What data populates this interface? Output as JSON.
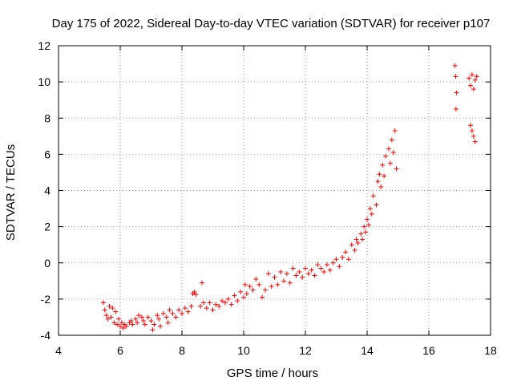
{
  "chart_data": {
    "type": "scatter",
    "title": "Day 175 of 2022, Sidereal Day-to-day VTEC variation (SDTVAR) for receiver p107",
    "xlabel": "GPS time / hours",
    "ylabel": "SDTVAR / TECUs",
    "xlim": [
      4,
      18
    ],
    "ylim": [
      -4,
      12
    ],
    "xticks": [
      "4",
      "6",
      "8",
      "10",
      "12",
      "14",
      "16",
      "18"
    ],
    "yticks": [
      "-4",
      "-2",
      "0",
      "2",
      "4",
      "6",
      "8",
      "10",
      "12"
    ],
    "grid": true,
    "marker": "+",
    "color": "#ff0000",
    "series": [
      {
        "name": "",
        "points": [
          [
            5.45,
            -2.2
          ],
          [
            5.5,
            -2.6
          ],
          [
            5.55,
            -2.9
          ],
          [
            5.6,
            -3.1
          ],
          [
            5.65,
            -2.4
          ],
          [
            5.7,
            -3.0
          ],
          [
            5.75,
            -2.5
          ],
          [
            5.8,
            -3.3
          ],
          [
            5.85,
            -2.7
          ],
          [
            5.9,
            -3.4
          ],
          [
            5.95,
            -3.1
          ],
          [
            6.0,
            -3.5
          ],
          [
            6.05,
            -3.3
          ],
          [
            6.1,
            -3.6
          ],
          [
            6.15,
            -3.4
          ],
          [
            6.2,
            -3.5
          ],
          [
            6.3,
            -3.3
          ],
          [
            6.35,
            -3.2
          ],
          [
            6.4,
            -3.4
          ],
          [
            6.5,
            -3.1
          ],
          [
            6.55,
            -3.3
          ],
          [
            6.6,
            -2.9
          ],
          [
            6.7,
            -3.0
          ],
          [
            6.75,
            -3.2
          ],
          [
            6.8,
            -3.4
          ],
          [
            6.9,
            -3.0
          ],
          [
            7.0,
            -3.2
          ],
          [
            7.05,
            -3.7
          ],
          [
            7.1,
            -3.4
          ],
          [
            7.2,
            -2.9
          ],
          [
            7.25,
            -3.1
          ],
          [
            7.3,
            -3.5
          ],
          [
            7.4,
            -2.8
          ],
          [
            7.5,
            -3.0
          ],
          [
            7.55,
            -3.3
          ],
          [
            7.6,
            -2.6
          ],
          [
            7.7,
            -2.8
          ],
          [
            7.8,
            -3.0
          ],
          [
            7.9,
            -2.6
          ],
          [
            8.0,
            -2.8
          ],
          [
            8.1,
            -2.5
          ],
          [
            8.2,
            -2.7
          ],
          [
            8.3,
            -2.4
          ],
          [
            8.35,
            -1.7
          ],
          [
            8.4,
            -1.6
          ],
          [
            8.45,
            -1.75
          ],
          [
            8.6,
            -2.4
          ],
          [
            8.65,
            -1.1
          ],
          [
            8.7,
            -2.2
          ],
          [
            8.8,
            -2.5
          ],
          [
            8.9,
            -2.2
          ],
          [
            9.0,
            -2.6
          ],
          [
            9.1,
            -2.3
          ],
          [
            9.2,
            -2.4
          ],
          [
            9.3,
            -2.1
          ],
          [
            9.4,
            -2.2
          ],
          [
            9.5,
            -2.0
          ],
          [
            9.6,
            -2.3
          ],
          [
            9.7,
            -1.8
          ],
          [
            9.8,
            -2.1
          ],
          [
            9.9,
            -1.6
          ],
          [
            10.0,
            -1.9
          ],
          [
            10.05,
            -1.2
          ],
          [
            10.1,
            -1.7
          ],
          [
            10.2,
            -1.3
          ],
          [
            10.3,
            -1.5
          ],
          [
            10.4,
            -0.9
          ],
          [
            10.5,
            -1.2
          ],
          [
            10.6,
            -1.9
          ],
          [
            10.7,
            -1.5
          ],
          [
            10.8,
            -0.6
          ],
          [
            10.9,
            -1.3
          ],
          [
            11.0,
            -0.8
          ],
          [
            11.1,
            -1.2
          ],
          [
            11.2,
            -0.5
          ],
          [
            11.3,
            -1.0
          ],
          [
            11.4,
            -0.6
          ],
          [
            11.5,
            -1.1
          ],
          [
            11.6,
            -0.3
          ],
          [
            11.7,
            -0.7
          ],
          [
            11.8,
            -0.5
          ],
          [
            11.9,
            -0.8
          ],
          [
            12.0,
            -0.3
          ],
          [
            12.1,
            -0.6
          ],
          [
            12.2,
            -0.4
          ],
          [
            12.3,
            -0.7
          ],
          [
            12.4,
            -0.1
          ],
          [
            12.5,
            -0.3
          ],
          [
            12.6,
            -0.5
          ],
          [
            12.7,
            -0.1
          ],
          [
            12.8,
            -0.4
          ],
          [
            12.9,
            0.0
          ],
          [
            13.0,
            0.2
          ],
          [
            13.1,
            -0.2
          ],
          [
            13.2,
            0.3
          ],
          [
            13.3,
            0.6
          ],
          [
            13.4,
            0.2
          ],
          [
            13.5,
            1.0
          ],
          [
            13.6,
            0.7
          ],
          [
            13.65,
            1.3
          ],
          [
            13.7,
            1.1
          ],
          [
            13.8,
            1.6
          ],
          [
            13.85,
            1.3
          ],
          [
            13.9,
            2.0
          ],
          [
            13.95,
            1.7
          ],
          [
            14.0,
            2.4
          ],
          [
            14.05,
            2.1
          ],
          [
            14.1,
            3.0
          ],
          [
            14.15,
            2.7
          ],
          [
            14.2,
            3.7
          ],
          [
            14.3,
            3.2
          ],
          [
            14.35,
            4.5
          ],
          [
            14.4,
            4.9
          ],
          [
            14.45,
            4.2
          ],
          [
            14.5,
            5.4
          ],
          [
            14.55,
            4.8
          ],
          [
            14.6,
            5.9
          ],
          [
            14.7,
            6.3
          ],
          [
            14.75,
            5.5
          ],
          [
            14.8,
            6.8
          ],
          [
            14.85,
            6.1
          ],
          [
            14.9,
            7.3
          ],
          [
            14.95,
            5.2
          ],
          [
            16.85,
            10.9
          ],
          [
            16.87,
            10.3
          ],
          [
            16.9,
            9.4
          ],
          [
            16.88,
            8.5
          ],
          [
            17.3,
            10.2
          ],
          [
            17.35,
            9.8
          ],
          [
            17.4,
            10.4
          ],
          [
            17.45,
            9.6
          ],
          [
            17.5,
            10.1
          ],
          [
            17.55,
            10.3
          ],
          [
            17.35,
            7.6
          ],
          [
            17.4,
            7.3
          ],
          [
            17.45,
            7.0
          ],
          [
            17.5,
            6.7
          ]
        ]
      }
    ]
  }
}
